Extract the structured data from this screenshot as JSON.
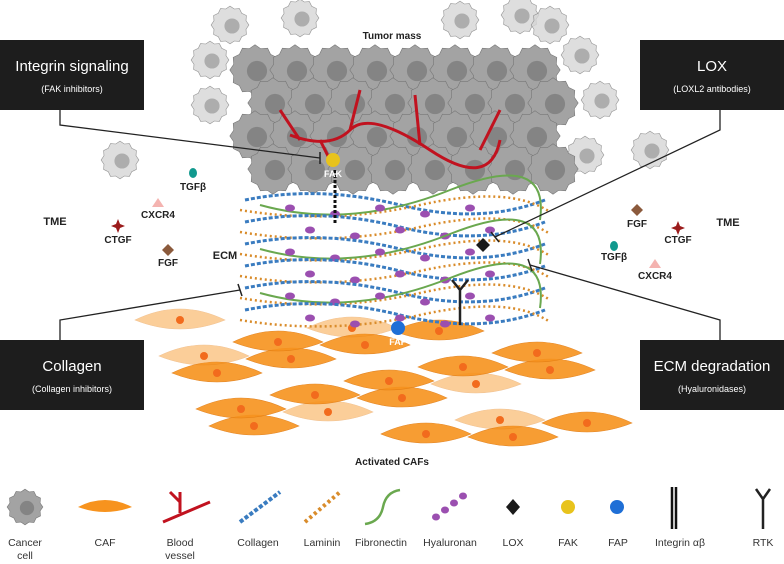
{
  "title": "Tumor mass",
  "bottom_label": "Activated CAFs",
  "boxes": {
    "integrin": {
      "title": "Integrin signaling",
      "subtitle": "(FAK inhibitors)"
    },
    "lox": {
      "title": "LOX",
      "subtitle": "(LOXL2 antibodies)"
    },
    "collagen": {
      "title": "Collagen",
      "subtitle": "(Collagen inhibitors)"
    },
    "ecm_degradation": {
      "title": "ECM degradation",
      "subtitle": "(Hyaluronidases)"
    }
  },
  "labels": {
    "tme_left": "TME",
    "tme_right": "TME",
    "ecm": "ECM",
    "ctgf": "CTGF",
    "cxcr4": "CXCR4",
    "tgfb": "TGFβ",
    "fgf": "FGF",
    "fak": "FAK",
    "fap": "FAP"
  },
  "legend": [
    {
      "label": "Cancer cell",
      "icon": "cancer-cell-icon"
    },
    {
      "label": "CAF",
      "icon": "caf-icon"
    },
    {
      "label": "Blood vessel",
      "icon": "blood-vessel-icon"
    },
    {
      "label": "Collagen",
      "icon": "collagen-icon"
    },
    {
      "label": "Laminin",
      "icon": "laminin-icon"
    },
    {
      "label": "Fibronectin",
      "icon": "fibronectin-icon"
    },
    {
      "label": "Hyaluronan",
      "icon": "hyaluronan-icon"
    },
    {
      "label": "LOX",
      "icon": "lox-icon"
    },
    {
      "label": "FAK",
      "icon": "fak-icon"
    },
    {
      "label": "FAP",
      "icon": "fap-icon"
    },
    {
      "label": "Integrin αβ",
      "icon": "integrin-icon"
    },
    {
      "label": "RTK",
      "icon": "rtk-icon"
    }
  ],
  "colors": {
    "cancer_cell": "#8f8f8f",
    "caf": "#f7931e",
    "vessel": "#c1121f",
    "collagen": "#3a7cc0",
    "laminin": "#d98c2b",
    "fibronectin": "#6aa84f",
    "hyaluronan": "#9b4fb0",
    "lox": "#1a1a1a",
    "fak": "#e8c31c",
    "fap": "#1f6fd6",
    "tgfb": "#11998e",
    "cxcr4": "#f4b3b0",
    "ctgf": "#9b1b1b",
    "fgf": "#8b5a3c"
  }
}
